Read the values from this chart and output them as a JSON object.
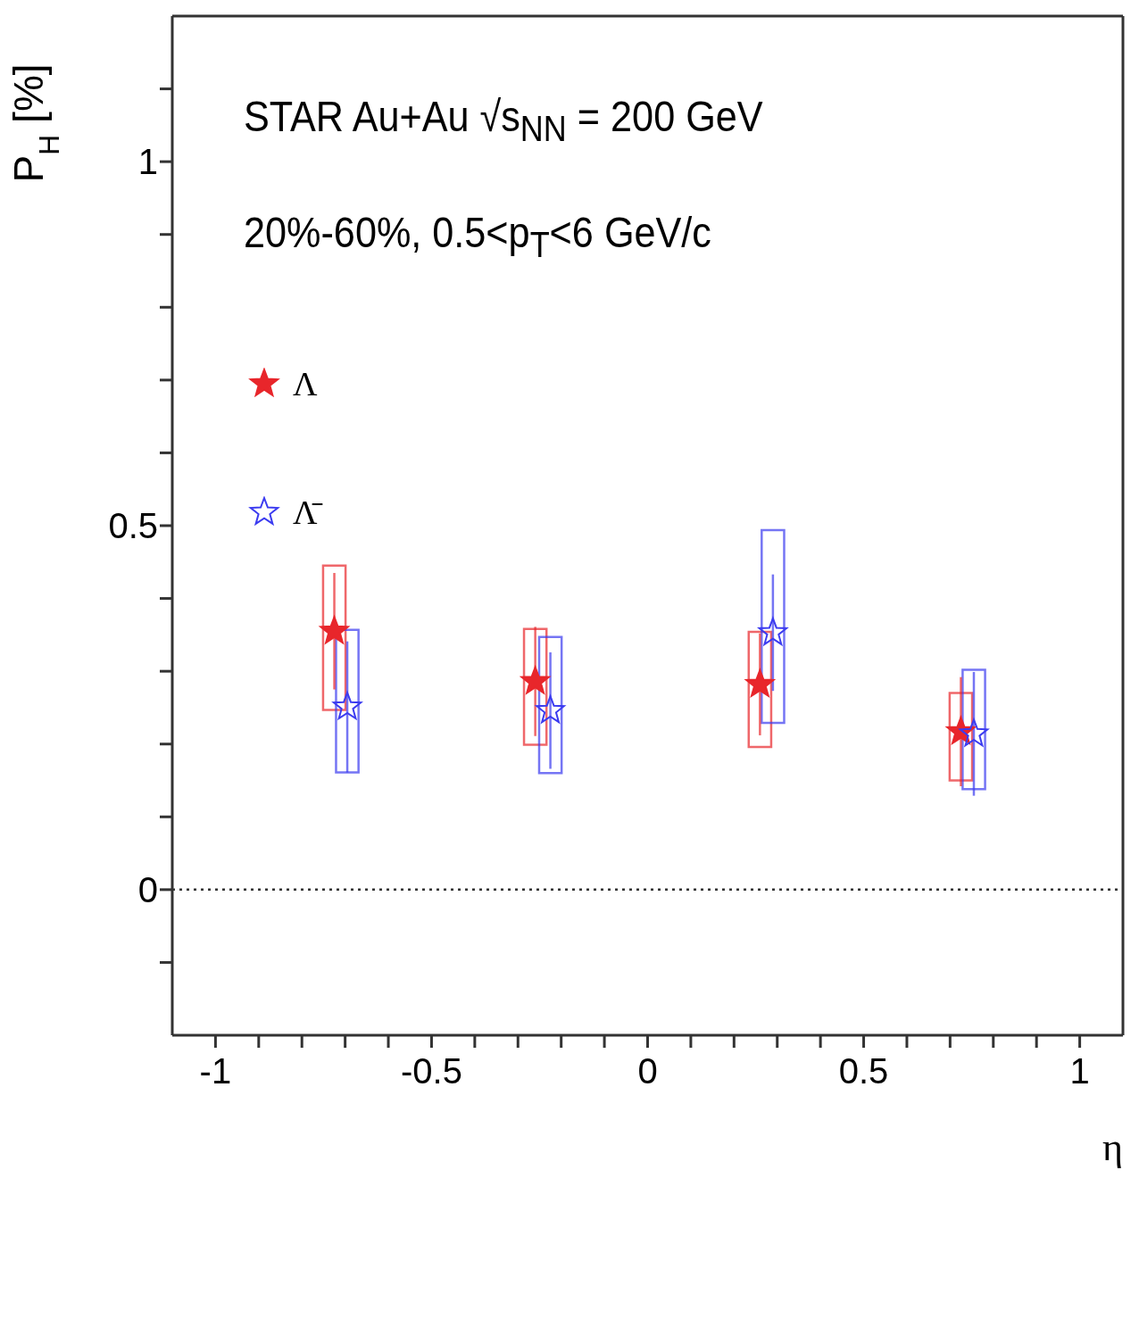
{
  "chart_data": {
    "type": "scatter",
    "annotations": [
      "STAR Au+Au √s$_{NN}$ = 200 GeV",
      "20%-60%, 0.5<p$_{T}$<6 GeV/c"
    ],
    "xlabel": "η",
    "ylabel": "P$_{H}$ [%]",
    "series": [
      {
        "name": "Λ",
        "type": "scatter",
        "color": "#e8262b",
        "marker": "star",
        "x": [
          -0.725,
          -0.26,
          0.26,
          0.725
        ],
        "values": [
          0.355,
          0.286,
          0.282,
          0.217
        ],
        "errors": [
          0.08,
          0.075,
          0.07,
          0.075
        ]
      },
      {
        "name": "Λ̄",
        "type": "scatter",
        "color": "#3b3bf0",
        "marker": "star",
        "x": [
          -0.695,
          -0.225,
          0.29,
          0.755
        ],
        "values": [
          0.251,
          0.246,
          0.353,
          0.214
        ],
        "errors": [
          0.09,
          0.08,
          0.08,
          0.085
        ]
      },
      {
        "type": "bar",
        "color": "#e8262b",
        "x": [
          -0.725,
          -0.26,
          0.26,
          0.725
        ],
        "base": [
          0.247,
          0.199,
          0.196,
          0.15
        ],
        "values": [
          0.198,
          0.159,
          0.158,
          0.12
        ]
      },
      {
        "type": "bar",
        "color": "#3b3bf0",
        "x": [
          -0.695,
          -0.225,
          0.29,
          0.755
        ],
        "base": [
          0.161,
          0.16,
          0.229,
          0.138
        ],
        "values": [
          0.196,
          0.187,
          0.265,
          0.164
        ]
      }
    ],
    "xlim": [
      -1.1,
      1.1
    ],
    "xticks": [
      -1,
      {
        "value": -0.9,
        "label": null
      },
      {
        "value": -0.8,
        "label": null
      },
      {
        "value": -0.7,
        "label": null
      },
      {
        "value": -0.6,
        "label": null
      },
      -0.5,
      {
        "value": -0.4,
        "label": null
      },
      {
        "value": -0.3,
        "label": null
      },
      {
        "value": -0.2,
        "label": null
      },
      {
        "value": -0.1,
        "label": null
      },
      0,
      {
        "value": 0.1,
        "label": null
      },
      {
        "value": 0.2,
        "label": null
      },
      {
        "value": 0.3,
        "label": null
      },
      {
        "value": 0.4,
        "label": null
      },
      0.5,
      {
        "value": 0.6,
        "label": null
      },
      {
        "value": 0.7,
        "label": null
      },
      {
        "value": 0.8,
        "label": null
      },
      {
        "value": 0.9,
        "label": null
      },
      1
    ],
    "ylim": [
      -0.2,
      1.2
    ],
    "yticks": [
      {
        "value": -0.1,
        "label": null
      },
      0,
      {
        "value": 0.1,
        "label": null
      },
      {
        "value": 0.2,
        "label": null
      },
      {
        "value": 0.3,
        "label": null
      },
      {
        "value": 0.4,
        "label": null
      },
      0.5,
      {
        "value": 0.6,
        "label": null
      },
      {
        "value": 0.7,
        "label": null
      },
      {
        "value": 0.8,
        "label": null
      },
      {
        "value": 0.9,
        "label": null
      },
      1,
      {
        "value": 1.1,
        "label": null
      }
    ],
    "ref_lines": [
      {
        "axis": "y",
        "value": 0,
        "color": "#333333",
        "line_style": "dotted"
      }
    ],
    "grid": false,
    "legend": "top left"
  }
}
